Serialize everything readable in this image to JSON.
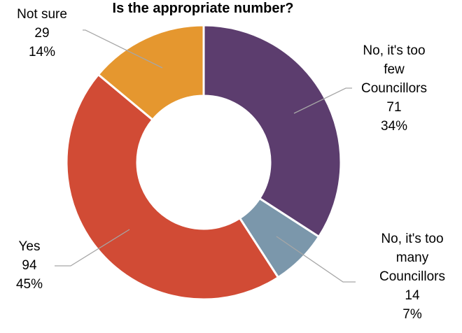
{
  "chart_data": {
    "type": "pie",
    "title": "Is the appropriate number?",
    "categories": [
      "No, it's too few Councillors",
      "No, it's too many Councillors",
      "Yes",
      "Not sure"
    ],
    "values": [
      71,
      14,
      94,
      29
    ],
    "percents": [
      "34%",
      "7%",
      "45%",
      "14%"
    ],
    "colors": [
      "#5c3d6e",
      "#7b97ab",
      "#d14b35",
      "#e5972f"
    ],
    "donut": true,
    "legend": "none",
    "data_labels": [
      [
        "No, it's too",
        "few",
        "Councillors",
        "71",
        "34%"
      ],
      [
        "No, it's too",
        "many",
        "Councillors",
        "14",
        "7%"
      ],
      [
        "Yes",
        "94",
        "45%"
      ],
      [
        "Not sure",
        "29",
        "14%"
      ]
    ]
  }
}
